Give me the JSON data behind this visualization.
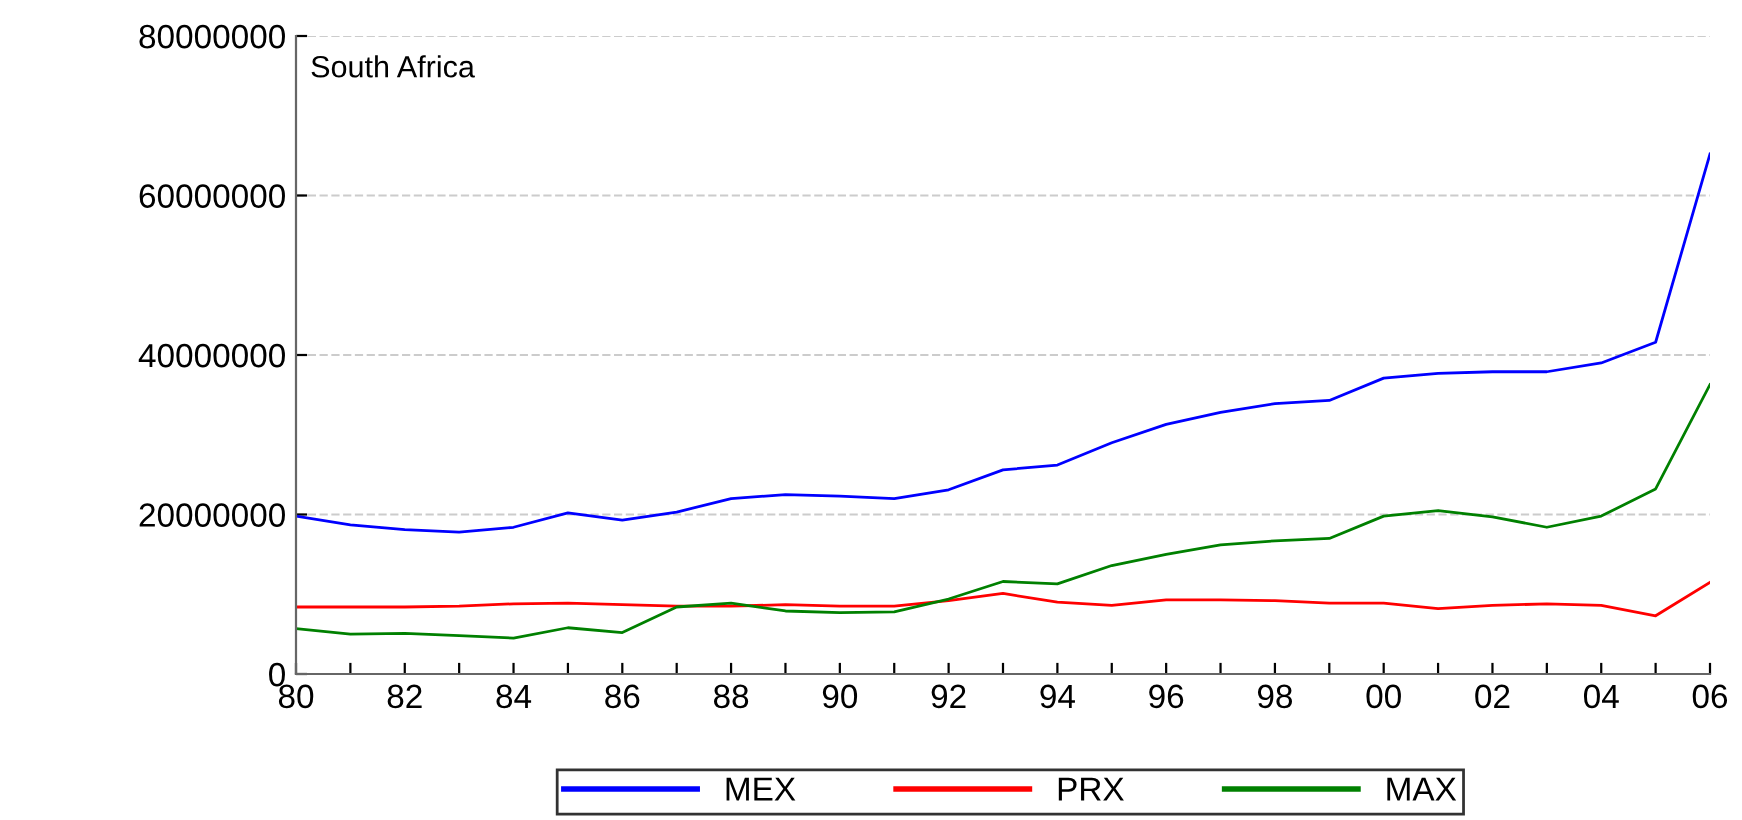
{
  "chart_data": {
    "type": "line",
    "annotations": [
      "South Africa"
    ],
    "x": [
      1980,
      1981,
      1982,
      1983,
      1984,
      1985,
      1986,
      1987,
      1988,
      1989,
      1990,
      1991,
      1992,
      1993,
      1994,
      1995,
      1996,
      1997,
      1998,
      1999,
      2000,
      2001,
      2002,
      2003,
      2004,
      2005,
      2006
    ],
    "series": [
      {
        "name": "MEX",
        "color": "#0000ff",
        "values": [
          19800000,
          18700000,
          18100000,
          17800000,
          18400000,
          20200000,
          19300000,
          20300000,
          22000000,
          22500000,
          22300000,
          22000000,
          23100000,
          25600000,
          26200000,
          29000000,
          31300000,
          32800000,
          33900000,
          34300000,
          37100000,
          37700000,
          37900000,
          37900000,
          39000000,
          41600000,
          65200000
        ]
      },
      {
        "name": "PRX",
        "color": "#ff0000",
        "values": [
          8400000,
          8400000,
          8400000,
          8500000,
          8800000,
          8900000,
          8700000,
          8500000,
          8500000,
          8700000,
          8500000,
          8500000,
          9200000,
          10100000,
          9000000,
          8600000,
          9300000,
          9300000,
          9200000,
          8900000,
          8900000,
          8200000,
          8600000,
          8800000,
          8600000,
          7300000,
          11500000
        ]
      },
      {
        "name": "MAX",
        "color": "#008000",
        "values": [
          5700000,
          5000000,
          5100000,
          4800000,
          4500000,
          5800000,
          5200000,
          8400000,
          8900000,
          7900000,
          7700000,
          7800000,
          9400000,
          11600000,
          11300000,
          13600000,
          15000000,
          16200000,
          16700000,
          17000000,
          19800000,
          20500000,
          19700000,
          18400000,
          19800000,
          23200000,
          36300000
        ]
      }
    ],
    "xlim": [
      1980,
      2006
    ],
    "xticks": [
      {
        "value": 1980,
        "label": "80"
      },
      {
        "value": 1981,
        "label": null
      },
      {
        "value": 1982,
        "label": "82"
      },
      {
        "value": 1983,
        "label": null
      },
      {
        "value": 1984,
        "label": "84"
      },
      {
        "value": 1985,
        "label": null
      },
      {
        "value": 1986,
        "label": "86"
      },
      {
        "value": 1987,
        "label": null
      },
      {
        "value": 1988,
        "label": "88"
      },
      {
        "value": 1989,
        "label": null
      },
      {
        "value": 1990,
        "label": "90"
      },
      {
        "value": 1991,
        "label": null
      },
      {
        "value": 1992,
        "label": "92"
      },
      {
        "value": 1993,
        "label": null
      },
      {
        "value": 1994,
        "label": "94"
      },
      {
        "value": 1995,
        "label": null
      },
      {
        "value": 1996,
        "label": "96"
      },
      {
        "value": 1997,
        "label": null
      },
      {
        "value": 1998,
        "label": "98"
      },
      {
        "value": 1999,
        "label": null
      },
      {
        "value": 2000,
        "label": "00"
      },
      {
        "value": 2001,
        "label": null
      },
      {
        "value": 2002,
        "label": "02"
      },
      {
        "value": 2003,
        "label": null
      },
      {
        "value": 2004,
        "label": "04"
      },
      {
        "value": 2005,
        "label": null
      },
      {
        "value": 2006,
        "label": "06"
      }
    ],
    "ylim": [
      0,
      80000000
    ],
    "yticks": [
      0,
      20000000,
      40000000,
      60000000,
      80000000
    ],
    "grid": "y",
    "legend": "bottom",
    "line_style": "solid",
    "marker": "none"
  }
}
